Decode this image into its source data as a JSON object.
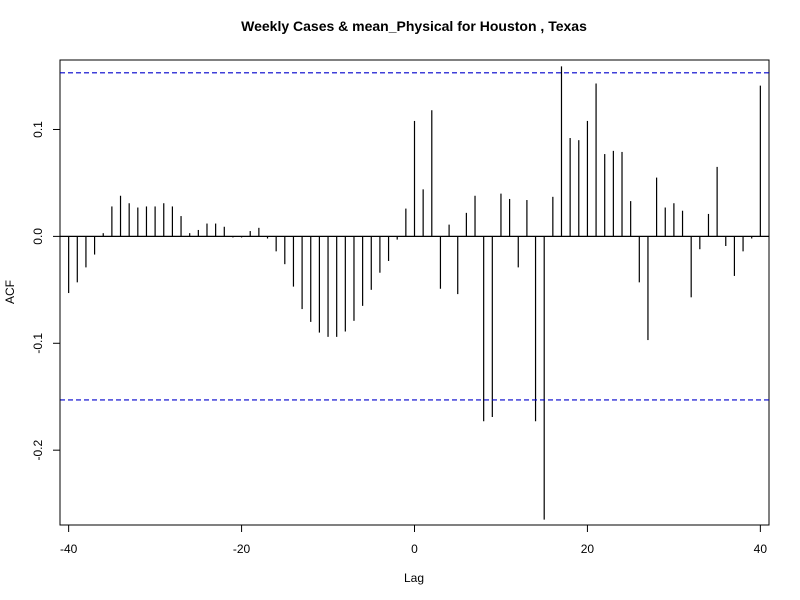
{
  "chart_data": {
    "type": "bar",
    "title": "Weekly Cases & mean_Physical for Houston , Texas",
    "xlabel": "Lag",
    "ylabel": "ACF",
    "xlim": [
      -41,
      41
    ],
    "ylim": [
      -0.27,
      0.165
    ],
    "x_ticks": [
      -40,
      -20,
      0,
      20,
      40
    ],
    "x_tick_labels": [
      "-40",
      "-20",
      "0",
      "20",
      "40"
    ],
    "y_ticks": [
      -0.2,
      -0.1,
      0.0,
      0.1
    ],
    "y_tick_labels": [
      "-0.2",
      "-0.1",
      "0.0",
      "0.1"
    ],
    "confidence_bound": 0.153,
    "confidence_color": "#0000cc",
    "bar_color": "#000000",
    "grid": false,
    "lags": [
      -40,
      -39,
      -38,
      -37,
      -36,
      -35,
      -34,
      -33,
      -32,
      -31,
      -30,
      -29,
      -28,
      -27,
      -26,
      -25,
      -24,
      -23,
      -22,
      -21,
      -20,
      -19,
      -18,
      -17,
      -16,
      -15,
      -14,
      -13,
      -12,
      -11,
      -10,
      -9,
      -8,
      -7,
      -6,
      -5,
      -4,
      -3,
      -2,
      -1,
      0,
      1,
      2,
      3,
      4,
      5,
      6,
      7,
      8,
      9,
      10,
      11,
      12,
      13,
      14,
      15,
      16,
      17,
      18,
      19,
      20,
      21,
      22,
      23,
      24,
      25,
      26,
      27,
      28,
      29,
      30,
      31,
      32,
      33,
      34,
      35,
      36,
      37,
      38,
      39,
      40
    ],
    "values": [
      -0.053,
      -0.043,
      -0.029,
      -0.017,
      0.003,
      0.028,
      0.038,
      0.031,
      0.027,
      0.028,
      0.028,
      0.031,
      0.028,
      0.019,
      0.003,
      0.006,
      0.012,
      0.012,
      0.009,
      -0.001,
      -0.001,
      0.005,
      0.008,
      -0.002,
      -0.014,
      -0.026,
      -0.047,
      -0.068,
      -0.08,
      -0.09,
      -0.094,
      -0.094,
      -0.089,
      -0.079,
      -0.065,
      -0.05,
      -0.034,
      -0.023,
      -0.003,
      0.026,
      0.108,
      0.044,
      0.118,
      -0.049,
      0.011,
      -0.054,
      0.022,
      0.038,
      -0.173,
      -0.169,
      0.04,
      0.035,
      -0.029,
      0.034,
      -0.173,
      -0.265,
      0.037,
      0.159,
      0.092,
      0.09,
      0.108,
      0.143,
      0.077,
      0.08,
      0.079,
      0.033,
      -0.043,
      -0.097,
      0.055,
      0.027,
      0.031,
      0.024,
      -0.057,
      -0.012,
      0.021,
      0.065,
      -0.009,
      -0.037,
      -0.014,
      -0.002,
      0.141
    ]
  }
}
